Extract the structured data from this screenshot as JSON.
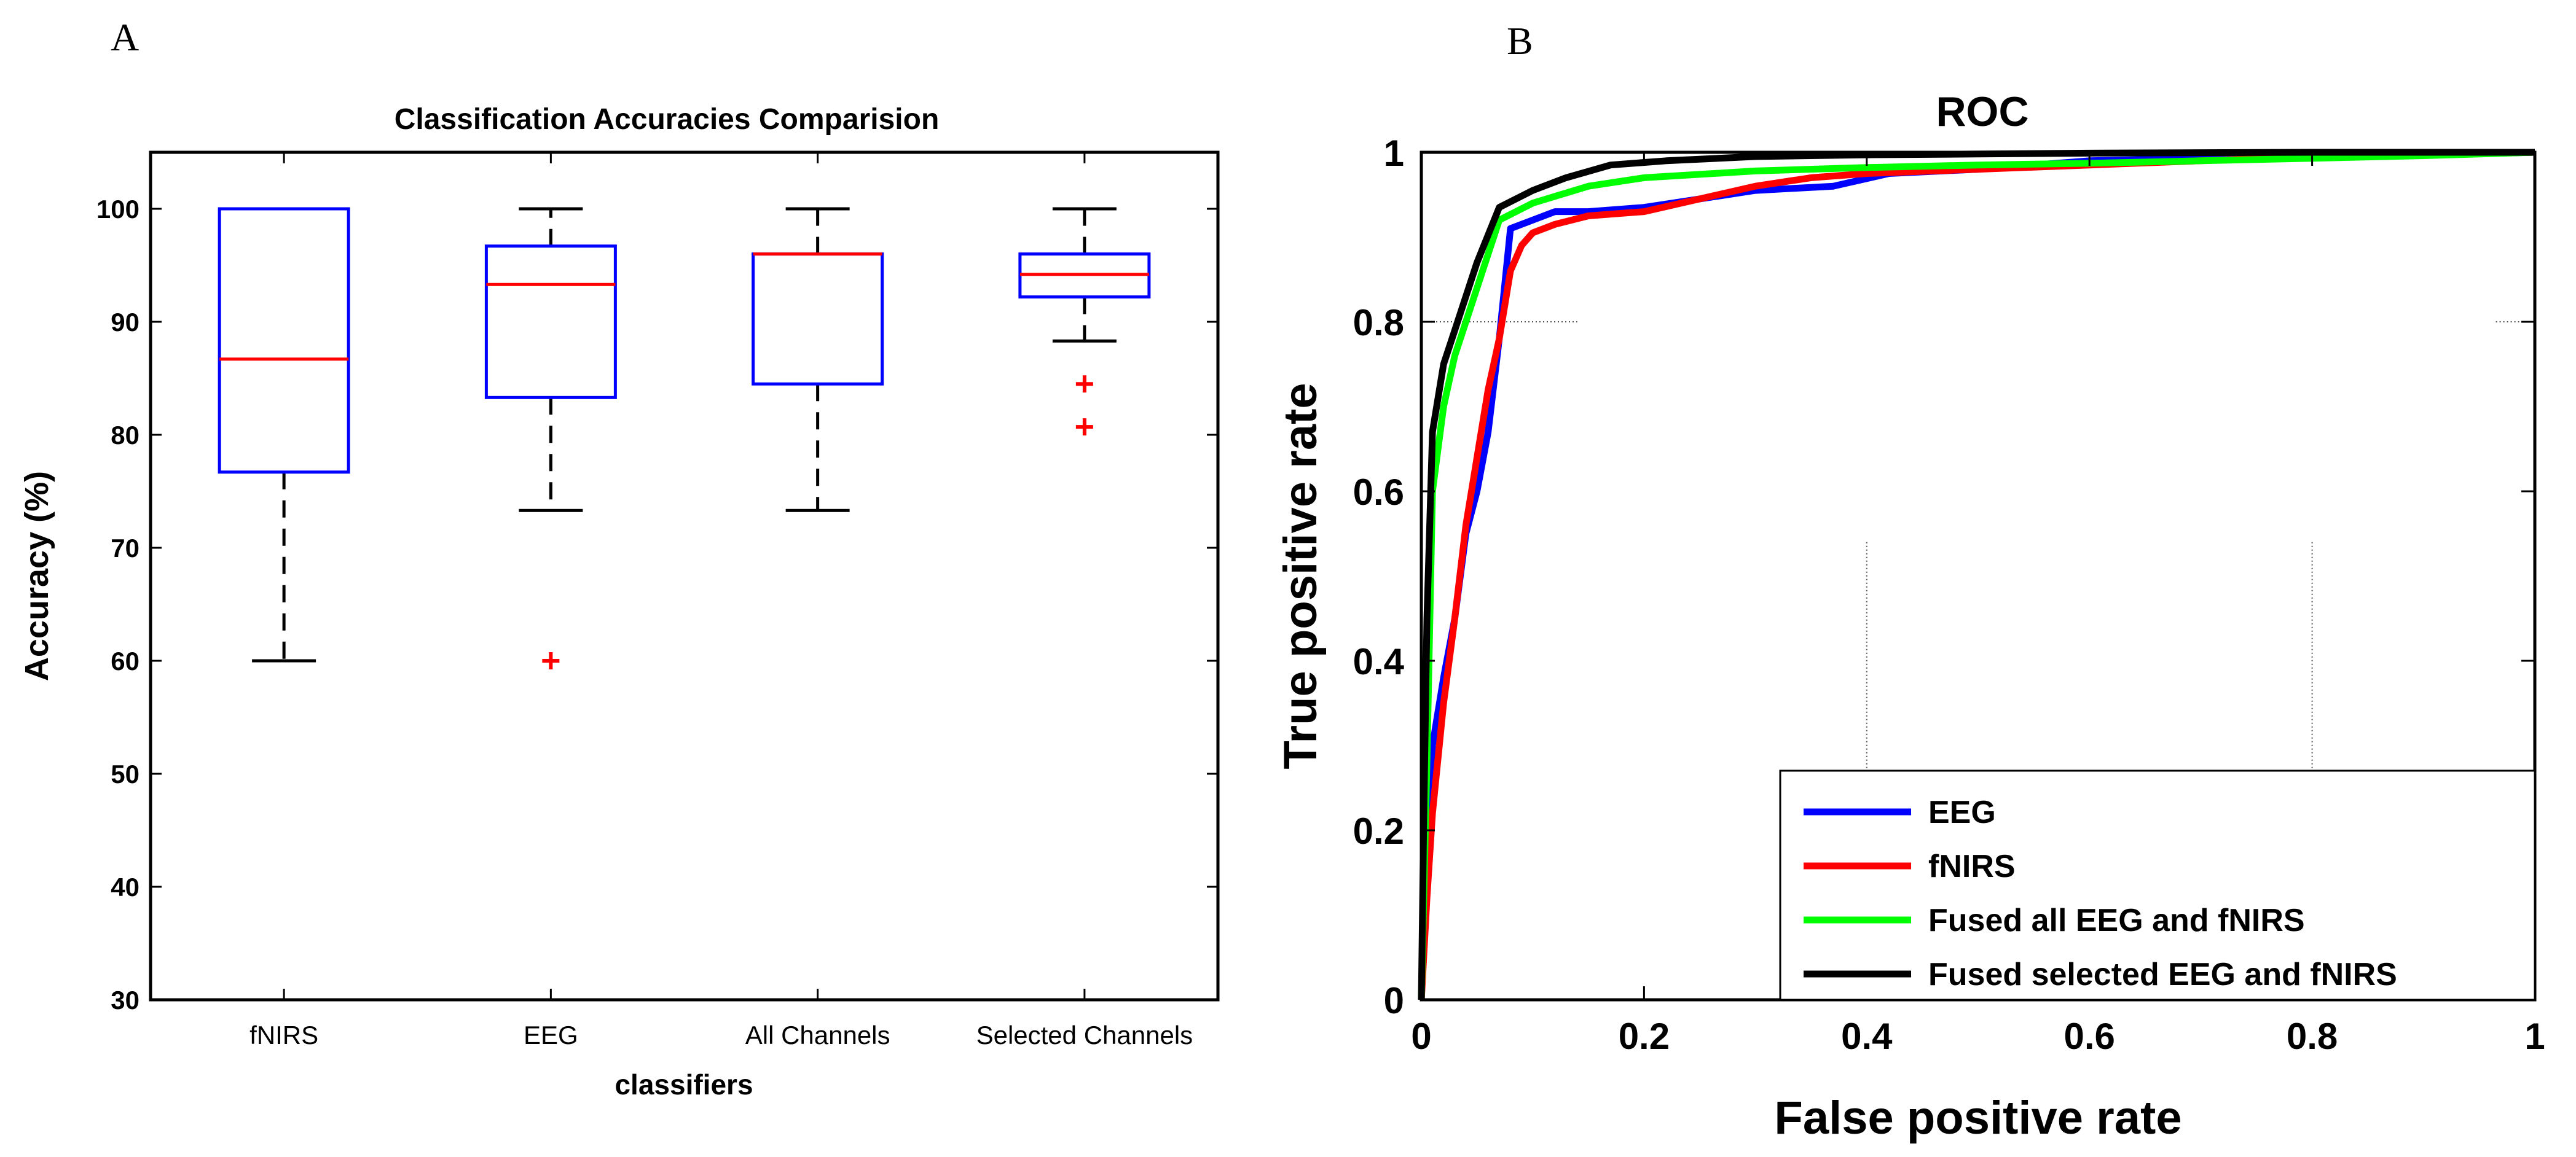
{
  "colors": {
    "box_edge": "#0000ff",
    "median": "#ff0000",
    "whisker": "#000000",
    "outlier": "#ff0000",
    "eeg": "#0000ff",
    "fnirs": "#ff0000",
    "fused_all": "#00ff00",
    "fused_selected": "#000000"
  },
  "panel_labels": {
    "a": "A",
    "b": "B"
  },
  "chart_data": [
    {
      "type": "box",
      "title": "Classification Accuracies Comparision",
      "xlabel": "classifiers",
      "ylabel": "Accuracy (%)",
      "ylim": [
        30,
        105
      ],
      "yticks": [
        30,
        40,
        50,
        60,
        70,
        80,
        90,
        100
      ],
      "categories": [
        "fNIRS",
        "EEG",
        "All Channels",
        "Selected Channels"
      ],
      "boxes": [
        {
          "name": "fNIRS",
          "whisker_low": 60,
          "q1": 76.7,
          "median": 86.7,
          "q3": 100,
          "whisker_high": 100,
          "outliers": []
        },
        {
          "name": "EEG",
          "whisker_low": 73.3,
          "q1": 83.3,
          "median": 93.3,
          "q3": 96.7,
          "whisker_high": 100,
          "outliers": [
            60
          ]
        },
        {
          "name": "All Channels",
          "whisker_low": 73.3,
          "q1": 84.5,
          "median": 96,
          "q3": 96,
          "whisker_high": 100,
          "outliers": []
        },
        {
          "name": "Selected Channels",
          "whisker_low": 88.3,
          "q1": 92.2,
          "median": 94.2,
          "q3": 96,
          "whisker_high": 100,
          "outliers": [
            84.5,
            80.7
          ]
        }
      ]
    },
    {
      "type": "line",
      "title": "ROC",
      "xlabel": "False positive rate",
      "ylabel": "True positive rate",
      "xlim": [
        0,
        1
      ],
      "ylim": [
        0,
        1
      ],
      "xticks": [
        0,
        0.2,
        0.4,
        0.6,
        0.8,
        1
      ],
      "yticks": [
        0,
        0.2,
        0.4,
        0.6,
        0.8,
        1
      ],
      "xticklabels": [
        "0",
        "0.2",
        "0.4",
        "0.6",
        "0.8",
        "1"
      ],
      "yticklabels": [
        "0",
        "0.2",
        "0.4",
        "0.6",
        "0.8",
        "1"
      ],
      "legend_position": "bottom-right",
      "series": [
        {
          "name": "EEG",
          "color_key": "eeg",
          "x": [
            0,
            0.005,
            0.01,
            0.02,
            0.03,
            0.04,
            0.05,
            0.06,
            0.07,
            0.08,
            0.1,
            0.12,
            0.15,
            0.2,
            0.25,
            0.3,
            0.37,
            0.42,
            0.5,
            0.6,
            0.7,
            0.8,
            0.9,
            1
          ],
          "y": [
            0,
            0.15,
            0.3,
            0.38,
            0.45,
            0.55,
            0.6,
            0.67,
            0.78,
            0.91,
            0.92,
            0.93,
            0.93,
            0.935,
            0.945,
            0.955,
            0.96,
            0.975,
            0.98,
            0.99,
            0.993,
            0.995,
            0.997,
            1
          ]
        },
        {
          "name": "fNIRS",
          "color_key": "fnirs",
          "x": [
            0,
            0.005,
            0.01,
            0.02,
            0.03,
            0.04,
            0.05,
            0.06,
            0.07,
            0.08,
            0.09,
            0.1,
            0.12,
            0.15,
            0.2,
            0.25,
            0.3,
            0.35,
            0.4,
            0.5,
            0.6,
            0.7,
            0.8,
            0.9,
            1
          ],
          "y": [
            0,
            0.12,
            0.22,
            0.35,
            0.45,
            0.56,
            0.64,
            0.72,
            0.78,
            0.86,
            0.89,
            0.905,
            0.915,
            0.925,
            0.93,
            0.945,
            0.96,
            0.97,
            0.975,
            0.98,
            0.985,
            0.99,
            0.995,
            0.997,
            1
          ]
        },
        {
          "name": "Fused  all EEG and fNIRS",
          "color_key": "fused_all",
          "x": [
            0,
            0.005,
            0.01,
            0.02,
            0.03,
            0.05,
            0.07,
            0.1,
            0.15,
            0.2,
            0.3,
            0.4,
            0.5,
            0.6,
            0.7,
            0.8,
            0.9,
            1
          ],
          "y": [
            0,
            0.28,
            0.6,
            0.7,
            0.76,
            0.84,
            0.92,
            0.94,
            0.96,
            0.97,
            0.978,
            0.982,
            0.985,
            0.987,
            0.99,
            0.993,
            0.996,
            1
          ]
        },
        {
          "name": "Fused  selected EEG and fNIRS",
          "color_key": "fused_selected",
          "x": [
            0,
            0.002,
            0.005,
            0.01,
            0.02,
            0.03,
            0.05,
            0.07,
            0.1,
            0.13,
            0.17,
            0.22,
            0.3,
            0.4,
            0.5,
            0.6,
            0.8,
            1
          ],
          "y": [
            0,
            0.2,
            0.45,
            0.67,
            0.75,
            0.79,
            0.87,
            0.935,
            0.955,
            0.97,
            0.985,
            0.99,
            0.995,
            0.997,
            0.998,
            0.999,
            1,
            1
          ]
        }
      ]
    }
  ]
}
